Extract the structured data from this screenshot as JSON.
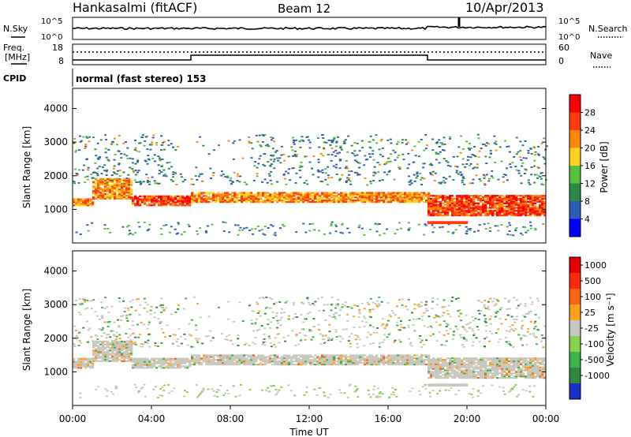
{
  "header": {
    "station": "Hankasalmi (fitACF)",
    "beam": "Beam 12",
    "date": "10/Apr/2013"
  },
  "top_panels": {
    "nsky_label": "N.Sky",
    "nsearch_label": "N.Search",
    "nsky_ticks": [
      "10^5",
      "10^0"
    ],
    "nsearch_ticks": [
      "10^5",
      "10^0"
    ],
    "freq_label": "Freq.",
    "freq_unit": "[MHz]",
    "freq_ticks": [
      "18",
      "8"
    ],
    "nave_label": "Nave",
    "nave_ticks": [
      "60",
      "0"
    ],
    "cpid_label": "CPID",
    "cpid_text": "normal (fast stereo) 153"
  },
  "chart_data": [
    {
      "type": "heatmap",
      "name": "power",
      "ylabel": "Slant Range [km]",
      "yticks": [
        "1000",
        "2000",
        "3000",
        "4000"
      ],
      "ylim": [
        0,
        4600
      ],
      "xlim_hours": [
        0,
        24
      ],
      "colorbar_label": "Power [dB]",
      "colorbar_ticks": [
        "4",
        "8",
        "12",
        "16",
        "20",
        "24",
        "28"
      ],
      "colorbar_colors": [
        "#0000ff",
        "#2a5cb8",
        "#2c8a46",
        "#55c23c",
        "#ffd21e",
        "#ff8a0a",
        "#ff3c0a",
        "#ff0000"
      ],
      "bands": [
        {
          "t0": 0,
          "t1": 1,
          "r0": 1100,
          "r1": 1300,
          "level": 5
        },
        {
          "t0": 1,
          "t1": 3,
          "r0": 1300,
          "r1": 1900,
          "level": 5
        },
        {
          "t0": 3,
          "t1": 6,
          "r0": 1100,
          "r1": 1400,
          "level": 6
        },
        {
          "t0": 6,
          "t1": 18,
          "r0": 1200,
          "r1": 1500,
          "level": 5
        },
        {
          "t0": 18,
          "t1": 24,
          "r0": 800,
          "r1": 1400,
          "level": 6
        }
      ]
    },
    {
      "type": "heatmap",
      "name": "velocity",
      "ylabel": "Slant Range [km]",
      "yticks": [
        "1000",
        "2000",
        "3000",
        "4000"
      ],
      "ylim": [
        0,
        4600
      ],
      "xlim_hours": [
        0,
        24
      ],
      "colorbar_label": "Velocity [m s⁻¹]",
      "colorbar_ticks": [
        "1000",
        "500",
        "100",
        "25",
        "-25",
        "-100",
        "-500",
        "-1000"
      ],
      "colorbar_colors": [
        "#1a30c8",
        "#2e8a3c",
        "#39b54a",
        "#8ad04a",
        "#c8c8c0",
        "#ffa01e",
        "#ff6414",
        "#ff2a0a",
        "#e60000"
      ],
      "bands": [
        {
          "t0": 0,
          "t1": 1,
          "r0": 1100,
          "r1": 1400,
          "level": 4
        },
        {
          "t0": 1,
          "t1": 3,
          "r0": 1300,
          "r1": 1900,
          "level": 4
        },
        {
          "t0": 3,
          "t1": 6,
          "r0": 1100,
          "r1": 1400,
          "level": 4
        },
        {
          "t0": 6,
          "t1": 18,
          "r0": 1200,
          "r1": 1500,
          "level": 4
        },
        {
          "t0": 18,
          "t1": 24,
          "r0": 800,
          "r1": 1400,
          "level": 4
        }
      ]
    }
  ],
  "x_axis": {
    "ticks": [
      "00:00",
      "04:00",
      "08:00",
      "12:00",
      "16:00",
      "20:00",
      "00:00"
    ],
    "label": "Time UT"
  }
}
